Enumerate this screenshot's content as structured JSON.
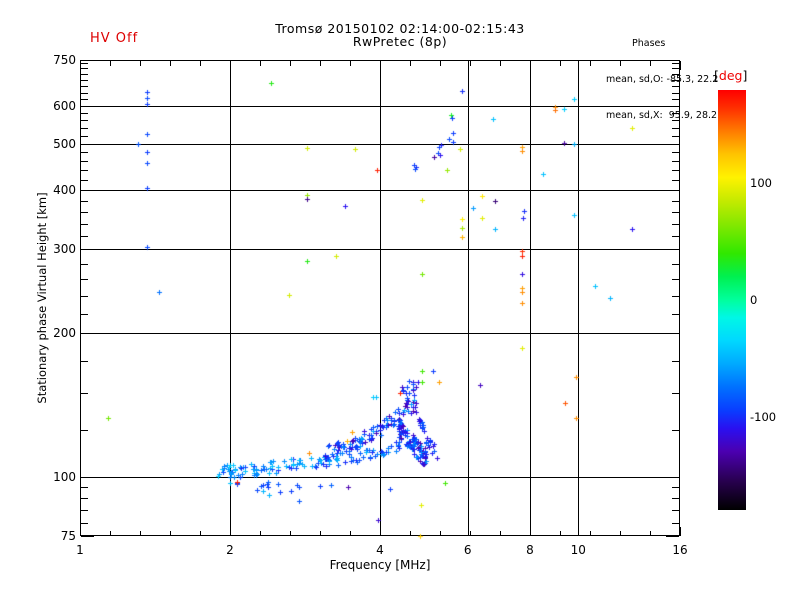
{
  "header": {
    "hv_status": "HV Off",
    "title_line1": "Tromsø 20150102 02:14:00-02:15:43",
    "title_line2": "RwPretec (8p)",
    "phases_title": "Phases",
    "phases_o": "mean, sd,O: -85.3, 22.2",
    "phases_x": "mean, sd,X:  95.9, 28.2"
  },
  "colors": {
    "hv_red": "#dd0000",
    "frame": "#000000",
    "background": "#ffffff",
    "deg_label_red": "#ee0000"
  },
  "chart_data": {
    "type": "scatter",
    "title": "Tromsø 20150102 02:14:00-02:15:43",
    "subtitle": "RwPretec (8p)",
    "xlabel": "Frequency [MHz]",
    "ylabel": "Stationary phase Virtual Height [km]",
    "x_scale": "log",
    "y_scale": "log",
    "xlim": [
      1,
      16
    ],
    "ylim": [
      75,
      750
    ],
    "x_major_ticks": [
      1,
      2,
      4,
      6,
      8,
      10,
      16
    ],
    "x_minor_ticks": [
      1.149,
      1.32,
      1.516,
      1.741,
      2.297,
      2.639,
      3.031,
      3.482,
      4.595,
      5.278,
      6.063,
      6.964,
      9.19,
      10.556,
      12.126,
      13.929
    ],
    "x_gridlines": [
      2,
      4,
      6,
      8,
      10
    ],
    "y_major_ticks": [
      75,
      100,
      200,
      300,
      400,
      500,
      600,
      750
    ],
    "y_minor_ticks": [
      80,
      85,
      90,
      95,
      125,
      150,
      175,
      220,
      240,
      260,
      280,
      320,
      340,
      360,
      380,
      420,
      440,
      460,
      480,
      520,
      540,
      560,
      580,
      620,
      640,
      660,
      680,
      700,
      720,
      740
    ],
    "y_gridlines": [
      100,
      200,
      300,
      400,
      500,
      600
    ],
    "grid": true,
    "legend_position": "right-colorbar",
    "colorbar": {
      "label_open": "[",
      "label": "deg",
      "label_close": "]",
      "unit": "deg",
      "range": [
        -180,
        180
      ],
      "ticks": [
        100,
        0,
        -100
      ],
      "stops": [
        [
          -180,
          "#000000"
        ],
        [
          -155,
          "#28004f"
        ],
        [
          -130,
          "#4b00b0"
        ],
        [
          -110,
          "#2a10f0"
        ],
        [
          -95,
          "#0a3cff"
        ],
        [
          -75,
          "#0070ff"
        ],
        [
          -55,
          "#00a8ff"
        ],
        [
          -35,
          "#00d8ff"
        ],
        [
          -15,
          "#00f7e6"
        ],
        [
          0,
          "#00ff9d"
        ],
        [
          20,
          "#00f050"
        ],
        [
          40,
          "#30e800"
        ],
        [
          65,
          "#85e800"
        ],
        [
          85,
          "#c4ea00"
        ],
        [
          105,
          "#fff200"
        ],
        [
          125,
          "#ffc400"
        ],
        [
          145,
          "#ff7a00"
        ],
        [
          165,
          "#ff2e00"
        ],
        [
          180,
          "#ff0000"
        ]
      ]
    },
    "seed": 20150102,
    "points": [
      [
        1.36,
        643,
        -95
      ],
      [
        1.36,
        624,
        -90
      ],
      [
        1.36,
        606,
        -95
      ],
      [
        1.36,
        524,
        -90
      ],
      [
        1.31,
        500,
        -85
      ],
      [
        1.36,
        481,
        -95
      ],
      [
        1.36,
        455,
        -90
      ],
      [
        1.36,
        404,
        -95
      ],
      [
        1.36,
        304,
        -90
      ],
      [
        1.44,
        244,
        -75
      ],
      [
        2.42,
        670,
        35
      ],
      [
        5.85,
        645,
        -100
      ],
      [
        9.8,
        622,
        -40
      ],
      [
        8.98,
        597,
        140
      ],
      [
        8.98,
        589,
        148
      ],
      [
        9.35,
        592,
        -40
      ],
      [
        12.8,
        540,
        95
      ],
      [
        5.56,
        576,
        30
      ],
      [
        5.58,
        567,
        -95
      ],
      [
        6.75,
        564,
        -45
      ],
      [
        5.6,
        528,
        -95
      ],
      [
        5.5,
        512,
        -90
      ],
      [
        5.6,
        505,
        -95
      ],
      [
        9.35,
        503,
        -135
      ],
      [
        9.8,
        500,
        -50
      ],
      [
        5.3,
        498,
        -105
      ],
      [
        5.25,
        492,
        -95
      ],
      [
        5.22,
        478,
        -90
      ],
      [
        5.28,
        473,
        -110
      ],
      [
        5.8,
        487,
        90
      ],
      [
        7.7,
        492,
        135
      ],
      [
        7.7,
        483,
        140
      ],
      [
        5.13,
        468,
        -135
      ],
      [
        2.86,
        489,
        90
      ],
      [
        3.56,
        487,
        90
      ],
      [
        4.68,
        452,
        -95
      ],
      [
        4.73,
        447,
        -100
      ],
      [
        4.7,
        443,
        -90
      ],
      [
        5.45,
        441,
        70
      ],
      [
        3.95,
        441,
        170
      ],
      [
        8.5,
        433,
        -45
      ],
      [
        4.86,
        381,
        95
      ],
      [
        6.42,
        389,
        110
      ],
      [
        6.8,
        379,
        -145
      ],
      [
        6.15,
        366,
        -60
      ],
      [
        6.4,
        349,
        95
      ],
      [
        6.8,
        331,
        -50
      ],
      [
        5.85,
        348,
        105
      ],
      [
        5.85,
        333,
        75
      ],
      [
        5.85,
        319,
        130
      ],
      [
        7.78,
        362,
        -100
      ],
      [
        7.75,
        349,
        -105
      ],
      [
        9.8,
        354,
        -45
      ],
      [
        12.8,
        331,
        -110
      ],
      [
        2.85,
        391,
        70
      ],
      [
        2.86,
        382,
        -140
      ],
      [
        3.4,
        371,
        -110
      ],
      [
        7.7,
        297,
        165
      ],
      [
        7.7,
        290,
        170
      ],
      [
        4.86,
        266,
        60
      ],
      [
        7.7,
        266,
        -115
      ],
      [
        7.7,
        249,
        135
      ],
      [
        7.7,
        244,
        140
      ],
      [
        7.7,
        232,
        140
      ],
      [
        10.8,
        251,
        -45
      ],
      [
        11.6,
        237,
        -50
      ],
      [
        3.27,
        291,
        90
      ],
      [
        2.85,
        284,
        35
      ],
      [
        2.63,
        241,
        90
      ],
      [
        7.7,
        186,
        95
      ],
      [
        4.86,
        167,
        45
      ],
      [
        4.86,
        158,
        45
      ],
      [
        5.1,
        167,
        -95
      ],
      [
        5.25,
        158,
        135
      ],
      [
        6.35,
        156,
        -125
      ],
      [
        9.9,
        162,
        140
      ],
      [
        9.4,
        143,
        155
      ],
      [
        9.9,
        133,
        140
      ],
      [
        1.14,
        133,
        60
      ],
      [
        3.88,
        147,
        -40
      ],
      [
        3.93,
        147,
        -45
      ],
      [
        4.38,
        150,
        170
      ],
      [
        3.52,
        124,
        135
      ],
      [
        3.43,
        119,
        130
      ],
      [
        2.88,
        112,
        140
      ],
      [
        2.07,
        97.5,
        170
      ],
      [
        2.0,
        97,
        -45
      ],
      [
        2.31,
        95.5,
        -85
      ],
      [
        2.33,
        96,
        -95
      ],
      [
        2.37,
        96.5,
        -90
      ],
      [
        2.38,
        95,
        -95
      ],
      [
        2.5,
        96.5,
        -85
      ],
      [
        2.72,
        96,
        -90
      ],
      [
        3.03,
        95.5,
        -95
      ],
      [
        3.45,
        95,
        -130
      ],
      [
        2.75,
        89,
        -85
      ],
      [
        4.18,
        94,
        -95
      ],
      [
        2.4,
        91.5,
        -50
      ],
      [
        3.96,
        81,
        -120
      ],
      [
        4.83,
        87,
        95
      ],
      [
        5.4,
        97,
        45
      ],
      [
        4.81,
        75,
        120
      ]
    ],
    "trace_segments": [
      {
        "name": "e-band",
        "f0": 1.88,
        "f1": 3.05,
        "n": 80,
        "curve": [
          [
            1.88,
            102
          ],
          [
            2.2,
            103.5
          ],
          [
            2.6,
            105.5
          ],
          [
            3.05,
            108
          ]
        ],
        "jitter": 3.2,
        "deg_pool": [
          -40,
          -45,
          -50,
          -55,
          -60,
          -65,
          -70,
          -80,
          -90,
          -100,
          -50,
          -60
        ]
      },
      {
        "name": "lower-strand",
        "f0": 3.05,
        "f1": 4.4,
        "n": 55,
        "curve": [
          [
            3.05,
            107
          ],
          [
            3.7,
            110
          ],
          [
            4.4,
            116
          ]
        ],
        "jitter": 3.2,
        "deg_pool": [
          -60,
          -70,
          -80,
          -85,
          -90,
          -95,
          -100,
          -110,
          -50
        ]
      },
      {
        "name": "rising-strand",
        "f0": 3.1,
        "f1": 4.55,
        "n": 90,
        "curve": [
          [
            3.1,
            112
          ],
          [
            3.6,
            118
          ],
          [
            4.0,
            126
          ],
          [
            4.3,
            133
          ],
          [
            4.55,
            141
          ]
        ],
        "jitter": 4.2,
        "deg_pool": [
          -70,
          -80,
          -85,
          -90,
          -95,
          -100,
          -105,
          -115,
          -125,
          -55
        ]
      },
      {
        "name": "cusp-blob",
        "f0": 4.35,
        "f1": 4.95,
        "n": 95,
        "curve": [
          [
            4.35,
            127
          ],
          [
            4.6,
            119
          ],
          [
            4.8,
            113
          ],
          [
            4.95,
            110
          ]
        ],
        "jitter": 5.5,
        "deg_pool": [
          -80,
          -90,
          -95,
          -100,
          -105,
          -110,
          -120,
          -130,
          -65
        ]
      },
      {
        "name": "spread-column",
        "f0": 4.42,
        "f1": 4.8,
        "n": 28,
        "curve": [
          [
            4.42,
            146
          ],
          [
            4.8,
            148
          ]
        ],
        "jitter": 12,
        "deg_pool": [
          -90,
          -100,
          -110,
          -115,
          -120,
          -130,
          -60
        ]
      },
      {
        "name": "hook-right",
        "f0": 4.78,
        "f1": 5.2,
        "n": 26,
        "curve": [
          [
            4.78,
            133
          ],
          [
            4.95,
            121
          ],
          [
            5.2,
            110
          ]
        ],
        "jitter": 3.8,
        "deg_pool": [
          -85,
          -95,
          -105,
          -115
        ]
      },
      {
        "name": "sub-band",
        "f0": 2.0,
        "f1": 3.2,
        "n": 9,
        "curve": [
          [
            2.0,
            96
          ],
          [
            3.2,
            93.5
          ]
        ],
        "jitter": 2.5,
        "deg_pool": [
          -50,
          -80,
          -90,
          -95
        ]
      }
    ]
  }
}
